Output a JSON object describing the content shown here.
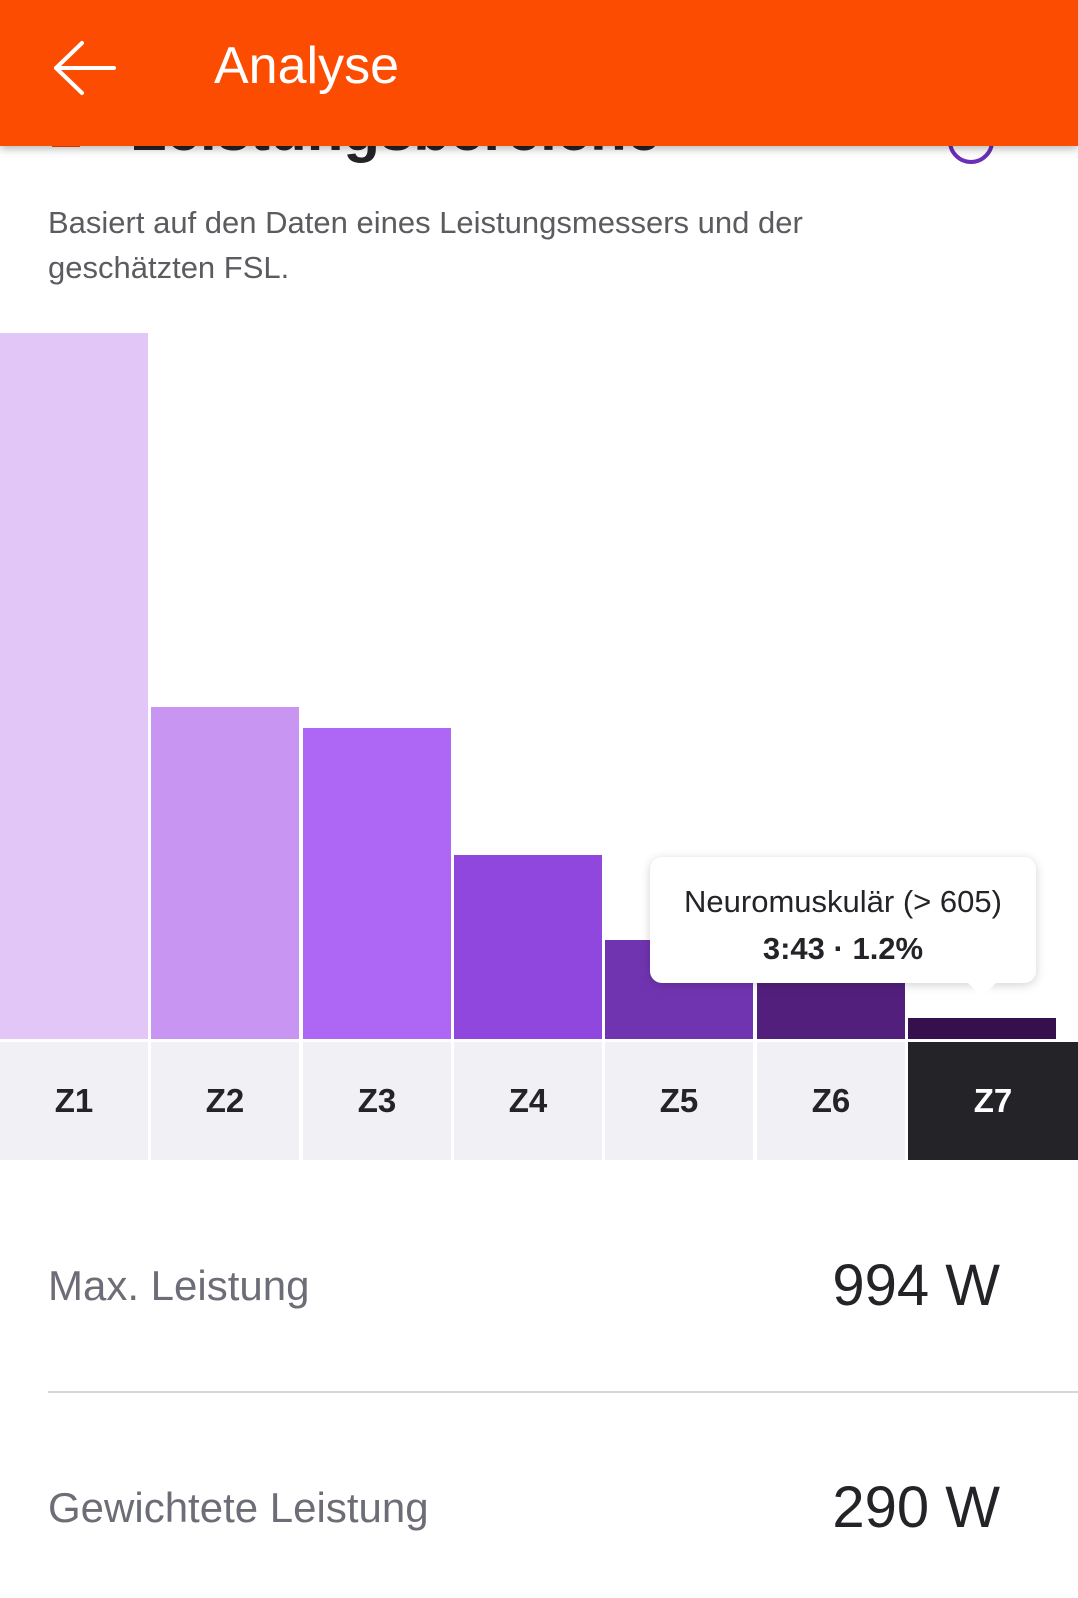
{
  "appbar": {
    "title": "Analyse",
    "back_icon": "arrow-left-icon",
    "background_color": "#fc4c02"
  },
  "section": {
    "title": "Leistungsbereiche",
    "subtitle": "Basiert auf den Daten eines Leistungsmessers und der geschätzten FSL.",
    "info_icon": "info-icon"
  },
  "chart_data": {
    "type": "bar",
    "categories": [
      "Z1",
      "Z2",
      "Z3",
      "Z4",
      "Z5",
      "Z6",
      "Z7"
    ],
    "values": [
      100,
      47,
      44,
      26,
      14,
      8,
      3
    ],
    "colors": [
      "#e1c6f7",
      "#c995f3",
      "#ae66f5",
      "#8f47dd",
      "#7134b0",
      "#531f7c",
      "#36104d"
    ],
    "selected_index": 6,
    "tooltip": {
      "title": "Neuromuskulär (> 605)",
      "value": "3:43 · 1.2%"
    }
  },
  "stats": [
    {
      "label": "Max. Leistung",
      "value": "994 W"
    },
    {
      "label": "Gewichtete Leistung",
      "value": "290 W"
    }
  ]
}
